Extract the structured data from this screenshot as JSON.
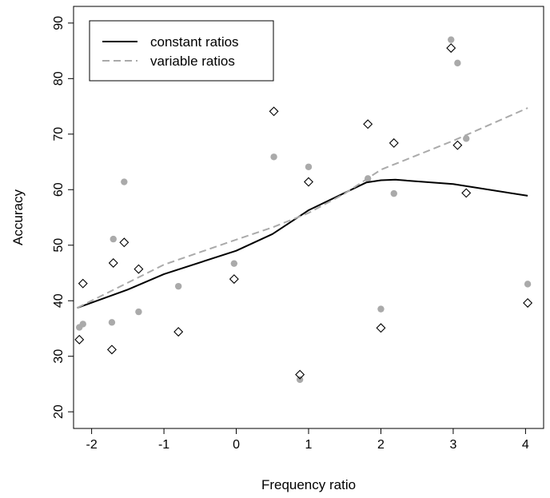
{
  "chart_data": {
    "type": "scatter",
    "xlabel": "Frequency ratio",
    "ylabel": "Accuracy",
    "xlim": [
      -2.25,
      4.25
    ],
    "ylim": [
      17,
      93
    ],
    "x_ticks": [
      "-2",
      "-1",
      "0",
      "1",
      "2",
      "3",
      "4"
    ],
    "y_ticks": [
      "20",
      "30",
      "40",
      "50",
      "60",
      "70",
      "80",
      "90"
    ],
    "legend": {
      "position": "top-left",
      "entries": [
        {
          "label": "constant ratios",
          "style": "solid",
          "color": "#000000"
        },
        {
          "label": "variable ratios",
          "style": "dashed",
          "color": "#aaaaaa"
        }
      ]
    },
    "series": [
      {
        "name": "constant ratios",
        "kind": "line",
        "style": "solid",
        "color": "#000000",
        "points": [
          [
            -2.2,
            38.7
          ],
          [
            -1.5,
            42.0
          ],
          [
            -1.0,
            44.8
          ],
          [
            0.0,
            49.0
          ],
          [
            0.5,
            52.0
          ],
          [
            1.0,
            56.3
          ],
          [
            1.8,
            61.3
          ],
          [
            2.0,
            61.7
          ],
          [
            2.2,
            61.8
          ],
          [
            3.0,
            61.0
          ],
          [
            4.03,
            58.9
          ]
        ]
      },
      {
        "name": "variable ratios",
        "kind": "line",
        "style": "dashed",
        "color": "#aaaaaa",
        "points": [
          [
            -2.2,
            38.7
          ],
          [
            -1.0,
            46.5
          ],
          [
            0.0,
            51.0
          ],
          [
            0.5,
            53.2
          ],
          [
            1.0,
            55.8
          ],
          [
            1.5,
            59.3
          ],
          [
            2.0,
            63.6
          ],
          [
            3.0,
            68.8
          ],
          [
            4.03,
            74.7
          ]
        ]
      },
      {
        "kind": "points",
        "marker": "diamond",
        "color": "#000000",
        "points": [
          [
            -2.17,
            33.0
          ],
          [
            -2.12,
            43.1
          ],
          [
            -1.72,
            31.2
          ],
          [
            -1.7,
            46.8
          ],
          [
            -1.55,
            50.5
          ],
          [
            -1.35,
            45.7
          ],
          [
            -0.8,
            34.4
          ],
          [
            -0.03,
            43.9
          ],
          [
            0.52,
            74.1
          ],
          [
            0.88,
            26.7
          ],
          [
            1.0,
            61.4
          ],
          [
            1.82,
            71.8
          ],
          [
            2.0,
            35.1
          ],
          [
            2.18,
            68.4
          ],
          [
            2.97,
            85.5
          ],
          [
            3.06,
            68.0
          ],
          [
            3.18,
            59.4
          ],
          [
            4.03,
            39.6
          ]
        ]
      },
      {
        "kind": "points",
        "marker": "filled-circle",
        "color": "#aaaaaa",
        "points": [
          [
            -2.17,
            35.2
          ],
          [
            -2.12,
            35.8
          ],
          [
            -1.72,
            36.1
          ],
          [
            -1.7,
            51.1
          ],
          [
            -1.55,
            61.4
          ],
          [
            -1.35,
            38.0
          ],
          [
            -0.8,
            42.6
          ],
          [
            -0.03,
            46.7
          ],
          [
            0.52,
            65.9
          ],
          [
            0.88,
            25.8
          ],
          [
            1.0,
            64.1
          ],
          [
            1.82,
            62.0
          ],
          [
            2.0,
            38.5
          ],
          [
            2.18,
            59.3
          ],
          [
            2.97,
            87.0
          ],
          [
            3.06,
            82.8
          ],
          [
            3.18,
            69.2
          ],
          [
            4.03,
            43.0
          ]
        ]
      }
    ]
  }
}
